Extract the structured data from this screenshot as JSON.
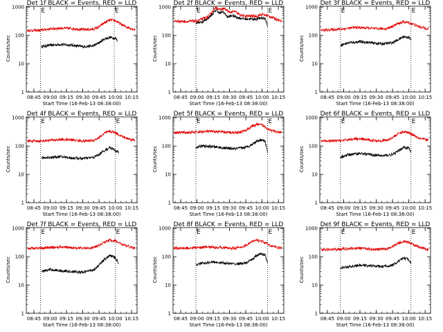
{
  "figure": {
    "xlabel": "Start Time (16-Feb-13 08:38:00)",
    "ylabel": "Counts/sec",
    "x_ticks": [
      "08:45",
      "09:00",
      "09:15",
      "09:30",
      "09:45",
      "10:00",
      "10:15"
    ],
    "y_ticks": [
      "1",
      "10",
      "100",
      "1000"
    ],
    "marker_label": "E"
  },
  "colors": {
    "events": "#000000",
    "lld": "#e00000",
    "axes": "#000000"
  },
  "chart_data": [
    {
      "type": "line",
      "title": "Det 1f BLACK = Events, RED = LLD",
      "x_unit": "time (HH:MM)",
      "xlim": [
        "08:38",
        "10:20"
      ],
      "ylim": [
        1,
        1200
      ],
      "y_scale": "log",
      "vlines": [
        "08:51",
        "09:59"
      ],
      "series": [
        {
          "name": "Events",
          "color": "#000000",
          "x": [
            "08:52",
            "09:00",
            "09:10",
            "09:20",
            "09:30",
            "09:40",
            "09:45",
            "09:50",
            "09:55",
            "10:00",
            "10:02"
          ],
          "y": [
            40,
            45,
            48,
            45,
            40,
            43,
            55,
            75,
            85,
            80,
            65
          ]
        },
        {
          "name": "LLD",
          "color": "#e00000",
          "x": [
            "08:39",
            "08:50",
            "09:00",
            "09:10",
            "09:20",
            "09:30",
            "09:40",
            "09:45",
            "09:50",
            "09:55",
            "10:00",
            "10:05",
            "10:10",
            "10:18"
          ],
          "y": [
            150,
            150,
            170,
            180,
            175,
            160,
            165,
            200,
            280,
            350,
            330,
            250,
            200,
            160
          ]
        }
      ]
    },
    {
      "type": "line",
      "title": "Det 2f BLACK = Events, RED = LLD",
      "x_unit": "time (HH:MM)",
      "xlim": [
        "08:38",
        "10:20"
      ],
      "ylim": [
        1,
        1200
      ],
      "y_scale": "log",
      "vlines": [
        "08:59",
        "10:05"
      ],
      "series": [
        {
          "name": "Events",
          "color": "#000000",
          "x": [
            "08:59",
            "09:05",
            "09:10",
            "09:15",
            "09:18",
            "09:21",
            "09:24",
            "09:28",
            "09:33",
            "09:38",
            "09:45",
            "09:55",
            "10:00",
            "10:03",
            "10:05"
          ],
          "y": [
            280,
            300,
            400,
            600,
            800,
            600,
            700,
            450,
            500,
            420,
            380,
            380,
            420,
            380,
            220
          ]
        },
        {
          "name": "LLD",
          "color": "#e00000",
          "x": [
            "08:39",
            "08:50",
            "09:00",
            "09:10",
            "09:15",
            "09:18",
            "09:21",
            "09:25",
            "09:30",
            "09:35",
            "09:40",
            "09:45",
            "09:55",
            "10:00",
            "10:05",
            "10:10",
            "10:18"
          ],
          "y": [
            320,
            310,
            320,
            450,
            750,
            1000,
            800,
            900,
            650,
            700,
            520,
            480,
            480,
            550,
            500,
            420,
            320
          ]
        }
      ]
    },
    {
      "type": "line",
      "title": "Det 3f BLACK = Events, RED = LLD",
      "x_unit": "time (HH:MM)",
      "xlim": [
        "08:38",
        "10:20"
      ],
      "ylim": [
        1,
        1200
      ],
      "y_scale": "log",
      "vlines": [
        "08:57",
        "10:02"
      ],
      "series": [
        {
          "name": "Events",
          "color": "#000000",
          "x": [
            "08:57",
            "09:05",
            "09:15",
            "09:25",
            "09:35",
            "09:45",
            "09:50",
            "09:55",
            "10:00",
            "10:02"
          ],
          "y": [
            45,
            55,
            60,
            55,
            50,
            55,
            70,
            90,
            85,
            70
          ]
        },
        {
          "name": "LLD",
          "color": "#e00000",
          "x": [
            "08:39",
            "08:50",
            "09:00",
            "09:10",
            "09:20",
            "09:30",
            "09:40",
            "09:45",
            "09:50",
            "09:55",
            "10:00",
            "10:05",
            "10:10",
            "10:18"
          ],
          "y": [
            150,
            160,
            170,
            190,
            185,
            170,
            175,
            210,
            260,
            300,
            280,
            240,
            200,
            170
          ]
        }
      ]
    },
    {
      "type": "line",
      "title": "Det 4f BLACK = Events, RED = LLD",
      "x_unit": "time (HH:MM)",
      "xlim": [
        "08:38",
        "10:20"
      ],
      "ylim": [
        1,
        1200
      ],
      "y_scale": "log",
      "vlines": [
        "08:51",
        "10:00"
      ],
      "series": [
        {
          "name": "Events",
          "color": "#000000",
          "x": [
            "08:52",
            "09:00",
            "09:10",
            "09:20",
            "09:30",
            "09:40",
            "09:45",
            "09:50",
            "09:55",
            "10:00",
            "10:03"
          ],
          "y": [
            38,
            40,
            42,
            38,
            36,
            40,
            50,
            70,
            90,
            70,
            60
          ]
        },
        {
          "name": "LLD",
          "color": "#e00000",
          "x": [
            "08:39",
            "08:50",
            "09:00",
            "09:10",
            "09:20",
            "09:30",
            "09:40",
            "09:45",
            "09:50",
            "09:55",
            "10:00",
            "10:05",
            "10:10",
            "10:18"
          ],
          "y": [
            150,
            150,
            160,
            170,
            165,
            150,
            160,
            200,
            280,
            330,
            300,
            230,
            190,
            160
          ]
        }
      ]
    },
    {
      "type": "line",
      "title": "Det 5f BLACK = Events, RED = LLD",
      "x_unit": "time (HH:MM)",
      "xlim": [
        "08:38",
        "10:20"
      ],
      "ylim": [
        1,
        1200
      ],
      "y_scale": "log",
      "vlines": [
        "08:59",
        "10:05"
      ],
      "series": [
        {
          "name": "Events",
          "color": "#000000",
          "x": [
            "08:59",
            "09:05",
            "09:15",
            "09:25",
            "09:35",
            "09:45",
            "09:50",
            "09:55",
            "10:00",
            "10:03",
            "10:05"
          ],
          "y": [
            90,
            100,
            95,
            85,
            80,
            90,
            110,
            150,
            170,
            140,
            60
          ]
        },
        {
          "name": "LLD",
          "color": "#e00000",
          "x": [
            "08:39",
            "08:50",
            "09:00",
            "09:10",
            "09:20",
            "09:30",
            "09:40",
            "09:45",
            "09:50",
            "09:55",
            "10:00",
            "10:05",
            "10:10",
            "10:18"
          ],
          "y": [
            300,
            300,
            310,
            330,
            320,
            300,
            310,
            360,
            480,
            580,
            550,
            420,
            340,
            290
          ]
        }
      ]
    },
    {
      "type": "line",
      "title": "Det 6f BLACK = Events, RED = LLD",
      "x_unit": "time (HH:MM)",
      "xlim": [
        "08:38",
        "10:20"
      ],
      "ylim": [
        1,
        1200
      ],
      "y_scale": "log",
      "vlines": [
        "08:57",
        "10:02"
      ],
      "series": [
        {
          "name": "Events",
          "color": "#000000",
          "x": [
            "08:57",
            "09:05",
            "09:15",
            "09:25",
            "09:35",
            "09:45",
            "09:50",
            "09:55",
            "10:00",
            "10:02"
          ],
          "y": [
            40,
            50,
            55,
            50,
            45,
            50,
            65,
            90,
            85,
            60
          ]
        },
        {
          "name": "LLD",
          "color": "#e00000",
          "x": [
            "08:39",
            "08:50",
            "09:00",
            "09:10",
            "09:20",
            "09:30",
            "09:40",
            "09:45",
            "09:50",
            "09:55",
            "10:00",
            "10:05",
            "10:10",
            "10:18"
          ],
          "y": [
            150,
            150,
            160,
            180,
            170,
            155,
            160,
            200,
            270,
            320,
            300,
            240,
            190,
            160
          ]
        }
      ]
    },
    {
      "type": "line",
      "title": "Det 7f BLACK = Events, RED = LLD",
      "x_unit": "time (HH:MM)",
      "xlim": [
        "08:38",
        "10:20"
      ],
      "ylim": [
        1,
        1200
      ],
      "y_scale": "log",
      "vlines": [
        "08:51",
        "10:00"
      ],
      "series": [
        {
          "name": "Events",
          "color": "#000000",
          "x": [
            "08:52",
            "09:00",
            "09:10",
            "09:20",
            "09:30",
            "09:40",
            "09:45",
            "09:50",
            "09:55",
            "10:00",
            "10:03"
          ],
          "y": [
            30,
            35,
            32,
            30,
            28,
            35,
            50,
            80,
            110,
            90,
            60
          ]
        },
        {
          "name": "LLD",
          "color": "#e00000",
          "x": [
            "08:39",
            "08:50",
            "09:00",
            "09:10",
            "09:20",
            "09:30",
            "09:40",
            "09:45",
            "09:50",
            "09:55",
            "10:00",
            "10:05",
            "10:10",
            "10:18"
          ],
          "y": [
            200,
            200,
            210,
            220,
            210,
            200,
            210,
            250,
            330,
            380,
            360,
            290,
            240,
            200
          ]
        }
      ]
    },
    {
      "type": "line",
      "title": "Det 8f BLACK = Events, RED = LLD",
      "x_unit": "time (HH:MM)",
      "xlim": [
        "08:38",
        "10:20"
      ],
      "ylim": [
        1,
        1200
      ],
      "y_scale": "log",
      "vlines": [
        "08:59",
        "10:05"
      ],
      "series": [
        {
          "name": "Events",
          "color": "#000000",
          "x": [
            "08:59",
            "09:05",
            "09:15",
            "09:25",
            "09:35",
            "09:45",
            "09:50",
            "09:55",
            "10:00",
            "10:03",
            "10:05"
          ],
          "y": [
            50,
            60,
            65,
            60,
            55,
            60,
            75,
            110,
            130,
            110,
            60
          ]
        },
        {
          "name": "LLD",
          "color": "#e00000",
          "x": [
            "08:39",
            "08:50",
            "09:00",
            "09:10",
            "09:20",
            "09:30",
            "09:40",
            "09:45",
            "09:50",
            "09:55",
            "10:00",
            "10:05",
            "10:10",
            "10:18"
          ],
          "y": [
            200,
            200,
            210,
            220,
            215,
            200,
            210,
            250,
            330,
            380,
            350,
            280,
            230,
            200
          ]
        }
      ]
    },
    {
      "type": "line",
      "title": "Det 9f BLACK = Events, RED = LLD",
      "x_unit": "time (HH:MM)",
      "xlim": [
        "08:38",
        "10:20"
      ],
      "ylim": [
        1,
        1200
      ],
      "y_scale": "log",
      "vlines": [
        "08:57",
        "10:02"
      ],
      "series": [
        {
          "name": "Events",
          "color": "#000000",
          "x": [
            "08:57",
            "09:05",
            "09:15",
            "09:25",
            "09:35",
            "09:45",
            "09:50",
            "09:55",
            "10:00",
            "10:02"
          ],
          "y": [
            40,
            45,
            50,
            48,
            45,
            50,
            65,
            90,
            80,
            60
          ]
        },
        {
          "name": "LLD",
          "color": "#e00000",
          "x": [
            "08:39",
            "08:50",
            "09:00",
            "09:10",
            "09:20",
            "09:30",
            "09:40",
            "09:45",
            "09:50",
            "09:55",
            "10:00",
            "10:05",
            "10:10",
            "10:18"
          ],
          "y": [
            180,
            180,
            190,
            200,
            195,
            180,
            190,
            230,
            300,
            350,
            320,
            260,
            210,
            180
          ]
        }
      ]
    }
  ]
}
